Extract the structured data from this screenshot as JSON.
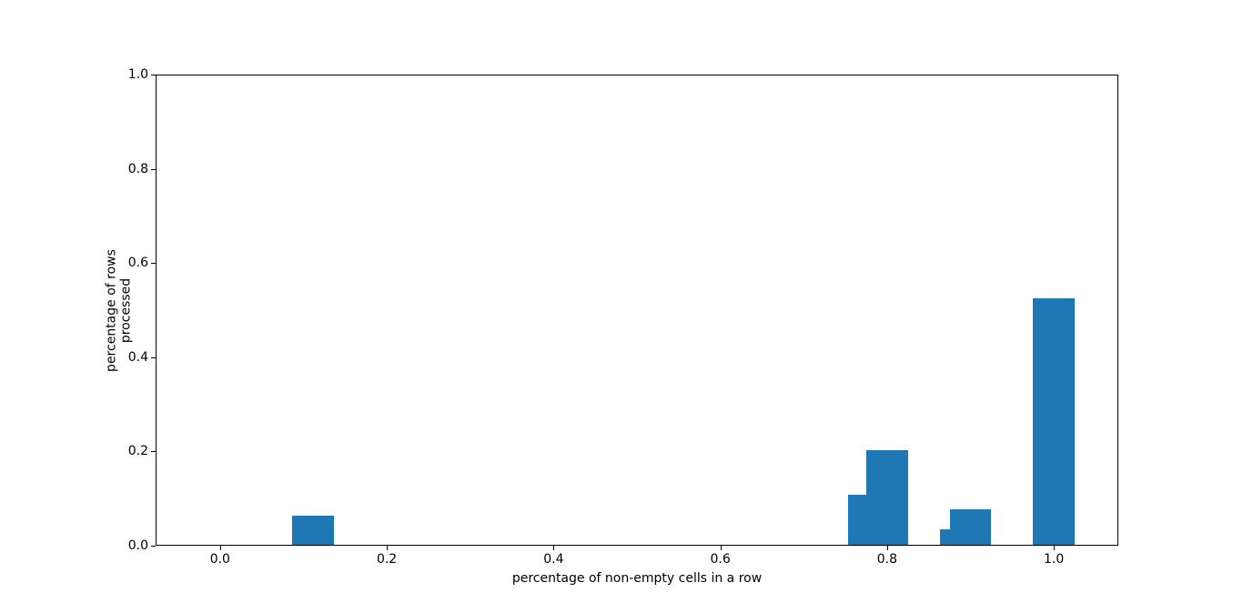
{
  "figure": {
    "background": "#ffffff"
  },
  "chart_data": {
    "type": "bar",
    "title": "",
    "xlabel": "percentage of non-empty cells in a row",
    "ylabel": "percentage of rows processed",
    "bar_color": "#1f77b4",
    "bar_width": 0.05,
    "x": [
      0.1111,
      0.7778,
      0.8,
      0.8889,
      0.9,
      1.0
    ],
    "values": [
      0.062,
      0.106,
      0.2,
      0.032,
      0.076,
      0.524
    ],
    "xlim": [
      -0.0773,
      1.0773
    ],
    "ylim": [
      0,
      1
    ],
    "x_tick_values": [
      0.0,
      0.2,
      0.4,
      0.6,
      0.8,
      1.0
    ],
    "x_tick_labels": [
      "0.0",
      "0.2",
      "0.4",
      "0.6",
      "0.8",
      "1.0"
    ],
    "y_tick_values": [
      0.0,
      0.2,
      0.4,
      0.6,
      0.8,
      1.0
    ],
    "y_tick_labels": [
      "0.0",
      "0.2",
      "0.4",
      "0.6",
      "0.8",
      "1.0"
    ],
    "grid": false,
    "legend": null
  }
}
